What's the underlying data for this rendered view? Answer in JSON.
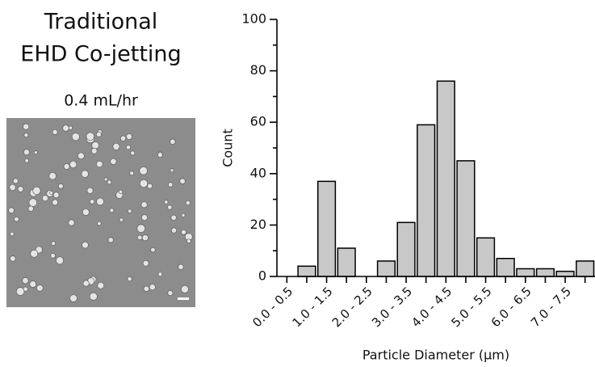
{
  "image_panel": {
    "title_lines": [
      "Traditional",
      "EHD Co-jetting"
    ],
    "caption": "0.4 mL/hr"
  },
  "chart_data": {
    "type": "bar",
    "categories": [
      "0.0 - 0.5",
      null,
      "1.0 - 1.5",
      null,
      "2.0 - 2.5",
      null,
      "3.0 - 3.5",
      null,
      "4.0 - 4.5",
      null,
      "5.0 - 5.5",
      null,
      "6.0 - 6.5",
      null,
      "7.0 - 7.5",
      null
    ],
    "values": [
      0,
      4,
      37,
      11,
      0,
      6,
      21,
      59,
      76,
      45,
      15,
      7,
      3,
      3,
      2,
      6
    ],
    "color": "#c8c8c8",
    "ylabel": "Count",
    "xlabel": "Particle Diameter (μm)",
    "ylim": [
      0,
      100
    ],
    "yticks": [
      0,
      20,
      40,
      60,
      80,
      100
    ],
    "yminorticks": [
      10,
      30,
      50,
      70,
      90
    ]
  }
}
